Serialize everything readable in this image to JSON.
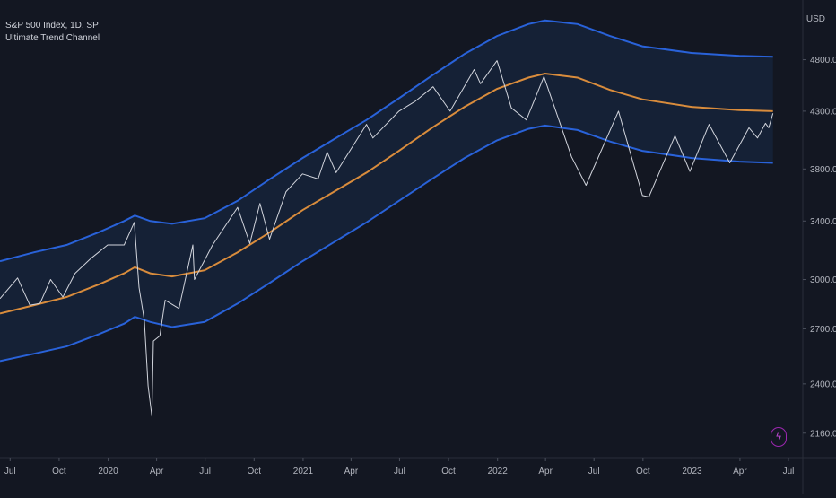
{
  "legend": {
    "symbol_line": "S&P 500 Index, 1D, SP",
    "indicator": "Ultimate Trend Channel"
  },
  "price_axis": {
    "currency": "USD"
  },
  "colors": {
    "background": "#131722",
    "price": "#d1d4dc",
    "upper_band": "#2962d9",
    "lower_band": "#2962d9",
    "mid_line": "#d98c3c",
    "fill": "#16233a",
    "axis_text": "#b2b5be",
    "bolt": "#9c27b0"
  },
  "icons": {
    "alert": "lightning-icon"
  },
  "chart_data": {
    "type": "line",
    "title": "S&P 500 Index, 1D, SP",
    "ylim": [
      2050,
      5350
    ],
    "y_scale": "log",
    "x_range": [
      "2019-06-12",
      "2023-07-28"
    ],
    "y_ticks": [
      4800,
      4300,
      3800,
      3400,
      3000,
      2700,
      2400,
      2160
    ],
    "x_ticks": [
      {
        "date": "2019-07-01",
        "label": "Jul"
      },
      {
        "date": "2019-10-01",
        "label": "Oct"
      },
      {
        "date": "2020-01-01",
        "label": "2020"
      },
      {
        "date": "2020-04-01",
        "label": "Apr"
      },
      {
        "date": "2020-07-01",
        "label": "Jul"
      },
      {
        "date": "2020-10-01",
        "label": "Oct"
      },
      {
        "date": "2021-01-01",
        "label": "2021"
      },
      {
        "date": "2021-04-01",
        "label": "Apr"
      },
      {
        "date": "2021-07-01",
        "label": "Jul"
      },
      {
        "date": "2021-10-01",
        "label": "Oct"
      },
      {
        "date": "2022-01-01",
        "label": "2022"
      },
      {
        "date": "2022-04-01",
        "label": "Apr"
      },
      {
        "date": "2022-07-01",
        "label": "Jul"
      },
      {
        "date": "2022-10-01",
        "label": "Oct"
      },
      {
        "date": "2023-01-01",
        "label": "2023"
      },
      {
        "date": "2023-04-01",
        "label": "Apr"
      },
      {
        "date": "2023-07-01",
        "label": "Jul"
      }
    ],
    "series": [
      {
        "key": "price",
        "points": [
          [
            "2019-06-12",
            2880
          ],
          [
            "2019-07-15",
            3010
          ],
          [
            "2019-08-07",
            2840
          ],
          [
            "2019-08-26",
            2850
          ],
          [
            "2019-09-15",
            3000
          ],
          [
            "2019-10-08",
            2890
          ],
          [
            "2019-10-31",
            3040
          ],
          [
            "2019-11-30",
            3140
          ],
          [
            "2019-12-31",
            3230
          ],
          [
            "2020-01-31",
            3230
          ],
          [
            "2020-02-19",
            3390
          ],
          [
            "2020-02-28",
            2950
          ],
          [
            "2020-03-09",
            2750
          ],
          [
            "2020-03-16",
            2390
          ],
          [
            "2020-03-23",
            2240
          ],
          [
            "2020-03-26",
            2630
          ],
          [
            "2020-04-07",
            2660
          ],
          [
            "2020-04-17",
            2870
          ],
          [
            "2020-05-13",
            2820
          ],
          [
            "2020-06-08",
            3230
          ],
          [
            "2020-06-11",
            3000
          ],
          [
            "2020-07-15",
            3230
          ],
          [
            "2020-08-31",
            3500
          ],
          [
            "2020-09-23",
            3240
          ],
          [
            "2020-10-12",
            3530
          ],
          [
            "2020-10-30",
            3270
          ],
          [
            "2020-11-30",
            3620
          ],
          [
            "2020-12-31",
            3760
          ],
          [
            "2021-01-29",
            3720
          ],
          [
            "2021-02-15",
            3940
          ],
          [
            "2021-03-04",
            3770
          ],
          [
            "2021-04-30",
            4180
          ],
          [
            "2021-05-12",
            4060
          ],
          [
            "2021-06-30",
            4300
          ],
          [
            "2021-07-30",
            4390
          ],
          [
            "2021-09-02",
            4530
          ],
          [
            "2021-10-04",
            4300
          ],
          [
            "2021-11-18",
            4700
          ],
          [
            "2021-11-30",
            4560
          ],
          [
            "2021-12-31",
            4790
          ],
          [
            "2022-01-27",
            4330
          ],
          [
            "2022-02-24",
            4220
          ],
          [
            "2022-03-29",
            4630
          ],
          [
            "2022-05-20",
            3900
          ],
          [
            "2022-06-16",
            3670
          ],
          [
            "2022-08-16",
            4300
          ],
          [
            "2022-09-30",
            3590
          ],
          [
            "2022-10-12",
            3580
          ],
          [
            "2022-11-30",
            4080
          ],
          [
            "2022-12-28",
            3780
          ],
          [
            "2023-02-02",
            4180
          ],
          [
            "2023-03-13",
            3850
          ],
          [
            "2023-04-18",
            4150
          ],
          [
            "2023-05-04",
            4060
          ],
          [
            "2023-05-19",
            4190
          ],
          [
            "2023-05-25",
            4150
          ],
          [
            "2023-06-02",
            4280
          ]
        ]
      },
      {
        "key": "upper_band",
        "points": [
          [
            "2019-06-12",
            3120
          ],
          [
            "2019-08-15",
            3180
          ],
          [
            "2019-10-15",
            3230
          ],
          [
            "2019-12-15",
            3320
          ],
          [
            "2020-01-31",
            3400
          ],
          [
            "2020-02-20",
            3440
          ],
          [
            "2020-03-20",
            3400
          ],
          [
            "2020-04-30",
            3380
          ],
          [
            "2020-06-30",
            3420
          ],
          [
            "2020-08-31",
            3550
          ],
          [
            "2020-10-31",
            3720
          ],
          [
            "2020-12-31",
            3890
          ],
          [
            "2021-02-28",
            4050
          ],
          [
            "2021-04-30",
            4220
          ],
          [
            "2021-06-30",
            4420
          ],
          [
            "2021-08-31",
            4640
          ],
          [
            "2021-10-31",
            4860
          ],
          [
            "2021-12-31",
            5050
          ],
          [
            "2022-02-28",
            5180
          ],
          [
            "2022-03-31",
            5220
          ],
          [
            "2022-05-31",
            5180
          ],
          [
            "2022-07-31",
            5050
          ],
          [
            "2022-09-30",
            4940
          ],
          [
            "2022-12-31",
            4870
          ],
          [
            "2023-03-31",
            4840
          ],
          [
            "2023-06-02",
            4830
          ]
        ]
      },
      {
        "key": "mid_line",
        "points": [
          [
            "2019-06-12",
            2790
          ],
          [
            "2019-08-15",
            2840
          ],
          [
            "2019-10-15",
            2890
          ],
          [
            "2019-12-15",
            2970
          ],
          [
            "2020-01-31",
            3040
          ],
          [
            "2020-02-20",
            3080
          ],
          [
            "2020-03-20",
            3040
          ],
          [
            "2020-04-30",
            3020
          ],
          [
            "2020-06-30",
            3060
          ],
          [
            "2020-08-31",
            3180
          ],
          [
            "2020-10-31",
            3320
          ],
          [
            "2020-12-31",
            3480
          ],
          [
            "2021-02-28",
            3620
          ],
          [
            "2021-04-30",
            3770
          ],
          [
            "2021-06-30",
            3950
          ],
          [
            "2021-08-31",
            4150
          ],
          [
            "2021-10-31",
            4340
          ],
          [
            "2021-12-31",
            4510
          ],
          [
            "2022-02-28",
            4620
          ],
          [
            "2022-03-31",
            4660
          ],
          [
            "2022-05-31",
            4620
          ],
          [
            "2022-07-31",
            4500
          ],
          [
            "2022-09-30",
            4410
          ],
          [
            "2022-12-31",
            4340
          ],
          [
            "2023-03-31",
            4310
          ],
          [
            "2023-06-02",
            4300
          ]
        ]
      },
      {
        "key": "lower_band",
        "points": [
          [
            "2019-06-12",
            2520
          ],
          [
            "2019-08-15",
            2560
          ],
          [
            "2019-10-15",
            2600
          ],
          [
            "2019-12-15",
            2670
          ],
          [
            "2020-01-31",
            2730
          ],
          [
            "2020-02-20",
            2770
          ],
          [
            "2020-03-20",
            2740
          ],
          [
            "2020-04-30",
            2710
          ],
          [
            "2020-06-30",
            2740
          ],
          [
            "2020-08-31",
            2850
          ],
          [
            "2020-10-31",
            2980
          ],
          [
            "2020-12-31",
            3120
          ],
          [
            "2021-02-28",
            3250
          ],
          [
            "2021-04-30",
            3390
          ],
          [
            "2021-06-30",
            3550
          ],
          [
            "2021-08-31",
            3720
          ],
          [
            "2021-10-31",
            3890
          ],
          [
            "2021-12-31",
            4040
          ],
          [
            "2022-02-28",
            4140
          ],
          [
            "2022-03-31",
            4170
          ],
          [
            "2022-05-31",
            4130
          ],
          [
            "2022-07-31",
            4030
          ],
          [
            "2022-09-30",
            3950
          ],
          [
            "2022-12-31",
            3890
          ],
          [
            "2023-03-31",
            3860
          ],
          [
            "2023-06-02",
            3850
          ]
        ]
      }
    ]
  }
}
